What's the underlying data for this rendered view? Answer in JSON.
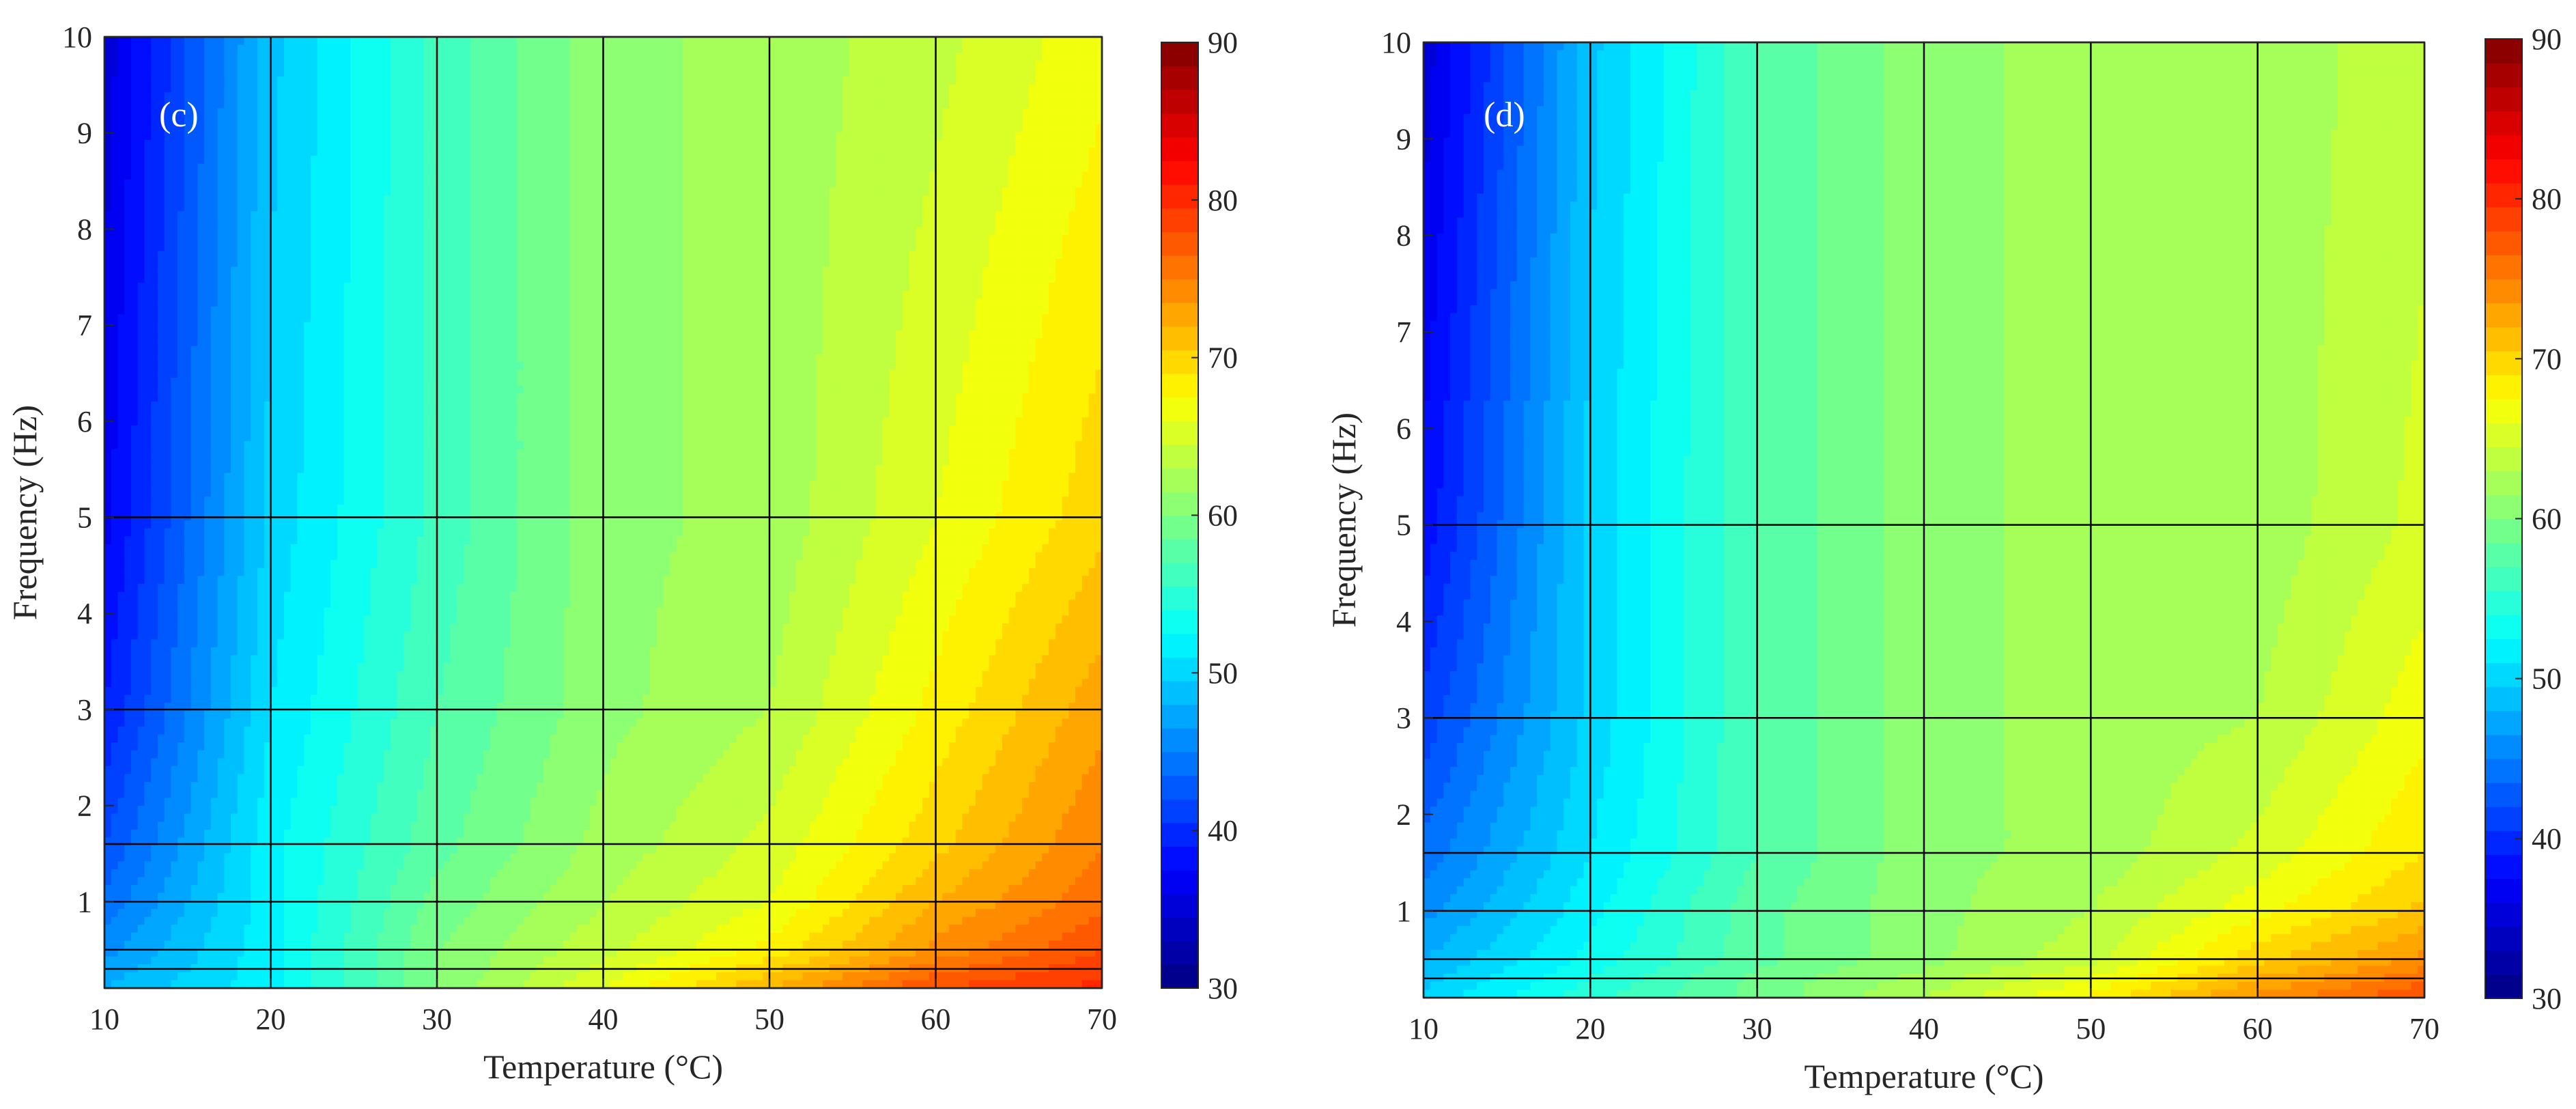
{
  "chart_data": [
    {
      "type": "heatmap",
      "panel_label": "(c)",
      "xlabel": "Temperature (°C)",
      "ylabel": "Frequency (Hz)",
      "xlim": [
        10,
        70
      ],
      "ylim": [
        0.1,
        10
      ],
      "x_ticks": [
        10,
        20,
        30,
        40,
        50,
        60,
        70
      ],
      "y_ticks": [
        1,
        2,
        3,
        4,
        5,
        6,
        7,
        8,
        9,
        10
      ],
      "colorbar": {
        "range": [
          30,
          90
        ],
        "ticks": [
          30,
          40,
          50,
          60,
          70,
          80,
          90
        ],
        "colormap": "jet"
      },
      "grid_temperatures": [
        10,
        20,
        30,
        40,
        50,
        60,
        70
      ],
      "grid_frequencies": [
        0.1,
        0.3,
        0.5,
        1,
        1.6,
        3,
        5,
        10
      ],
      "x": [
        10,
        20,
        30,
        40,
        50,
        60,
        70
      ],
      "y": [
        0.1,
        0.3,
        0.5,
        1,
        1.6,
        3,
        5,
        10
      ],
      "z": [
        [
          48,
          52,
          60,
          66,
          72,
          78,
          80
        ],
        [
          47,
          52,
          60,
          65,
          70,
          76,
          79
        ],
        [
          46,
          52,
          60,
          64,
          68,
          74,
          78
        ],
        [
          44,
          52,
          59,
          63,
          66,
          72,
          76
        ],
        [
          42,
          52,
          58,
          62,
          65,
          70,
          75
        ],
        [
          39,
          51,
          57,
          61,
          63,
          68,
          73
        ],
        [
          37,
          50,
          56,
          61,
          62,
          66,
          70
        ],
        [
          35,
          49,
          56,
          61,
          62,
          64,
          67
        ]
      ]
    },
    {
      "type": "heatmap",
      "panel_label": "(d)",
      "xlabel": "Temperature (°C)",
      "ylabel": "Frequency (Hz)",
      "xlim": [
        10,
        70
      ],
      "ylim": [
        0.1,
        10
      ],
      "x_ticks": [
        10,
        20,
        30,
        40,
        50,
        60,
        70
      ],
      "y_ticks": [
        1,
        2,
        3,
        4,
        5,
        6,
        7,
        8,
        9,
        10
      ],
      "colorbar": {
        "range": [
          30,
          90
        ],
        "ticks": [
          30,
          40,
          50,
          60,
          70,
          80,
          90
        ],
        "colormap": "jet"
      },
      "grid_temperatures": [
        10,
        20,
        30,
        40,
        50,
        60,
        70
      ],
      "grid_frequencies": [
        0.1,
        0.3,
        0.5,
        1,
        1.6,
        3,
        5,
        10
      ],
      "x": [
        10,
        20,
        30,
        40,
        50,
        60,
        70
      ],
      "y": [
        0.1,
        0.3,
        0.5,
        1,
        1.6,
        3,
        5,
        10
      ],
      "z": [
        [
          50,
          55,
          59,
          63,
          68,
          74,
          78
        ],
        [
          49,
          54,
          59,
          62,
          66,
          72,
          76
        ],
        [
          48,
          53,
          58,
          61,
          64,
          70,
          74
        ],
        [
          46,
          52,
          58,
          61,
          63,
          67,
          71
        ],
        [
          44,
          51,
          57,
          61,
          62,
          65,
          69
        ],
        [
          41,
          50,
          57,
          61,
          62,
          63,
          67
        ],
        [
          38,
          50,
          57,
          61,
          62,
          62,
          65
        ],
        [
          35,
          49,
          57,
          61,
          62,
          62,
          64
        ]
      ]
    }
  ]
}
